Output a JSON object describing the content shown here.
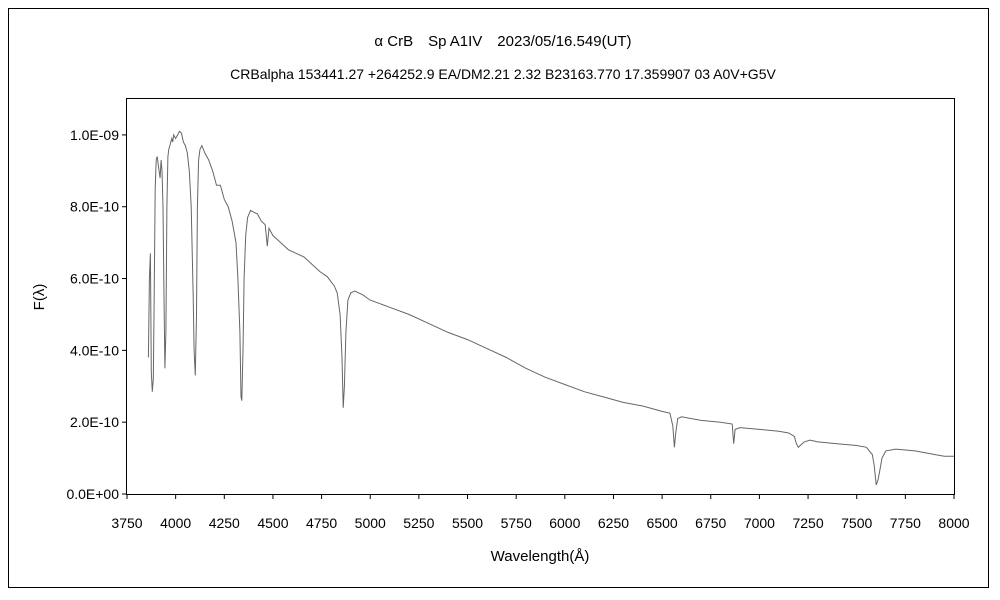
{
  "chart_data": {
    "type": "line",
    "title": "α CrB　Sp A1IV　2023/05/16.549(UT)",
    "subtitle": "CRBalpha 153441.27 +264252.9 EA/DM2.21 2.32 B23163.770 17.359907 03 A0V+G5V",
    "xlabel": "Wavelength(Å)",
    "ylabel": "F(λ)",
    "xlim": [
      3750,
      8000
    ],
    "ylim": [
      0,
      1.1e-09
    ],
    "xticks": [
      3750,
      4000,
      4250,
      4500,
      4750,
      5000,
      5250,
      5500,
      5750,
      6000,
      6250,
      6500,
      6750,
      7000,
      7250,
      7500,
      7750,
      8000
    ],
    "xtick_labels": [
      "3750",
      "4000",
      "4250",
      "4500",
      "4750",
      "5000",
      "5250",
      "5500",
      "5750",
      "6000",
      "6250",
      "6500",
      "6750",
      "7000",
      "7250",
      "7500",
      "7750",
      "8000"
    ],
    "yticks": [
      0,
      2e-10,
      4e-10,
      6e-10,
      8e-10,
      1e-09
    ],
    "ytick_labels": [
      "0.0E+00",
      "2.0E-10",
      "4.0E-10",
      "6.0E-10",
      "8.0E-10",
      "1.0E-09"
    ],
    "grid": false,
    "legend": "none",
    "line_color": "#666666",
    "series": [
      {
        "x": [
          3860,
          3865,
          3870,
          3875,
          3880,
          3885,
          3889,
          3895,
          3900,
          3905,
          3910,
          3915,
          3920,
          3925,
          3930,
          3935,
          3940,
          3945,
          3950,
          3955,
          3960,
          3965,
          3970,
          3975,
          3980,
          3985,
          3990,
          4000,
          4010,
          4020,
          4030,
          4040,
          4050,
          4060,
          4070,
          4080,
          4090,
          4095,
          4101,
          4107,
          4112,
          4118,
          4125,
          4135,
          4150,
          4170,
          4190,
          4210,
          4230,
          4250,
          4270,
          4290,
          4310,
          4320,
          4330,
          4336,
          4340,
          4346,
          4352,
          4360,
          4370,
          4385,
          4400,
          4420,
          4440,
          4460,
          4471,
          4480,
          4500,
          4540,
          4580,
          4620,
          4660,
          4700,
          4740,
          4780,
          4800,
          4815,
          4830,
          4845,
          4855,
          4861,
          4867,
          4875,
          4885,
          4900,
          4920,
          4960,
          5000,
          5050,
          5100,
          5200,
          5300,
          5400,
          5500,
          5600,
          5700,
          5800,
          5900,
          6000,
          6100,
          6200,
          6300,
          6400,
          6500,
          6540,
          6555,
          6563,
          6570,
          6580,
          6600,
          6700,
          6800,
          6860,
          6868,
          6875,
          6900,
          7000,
          7100,
          7150,
          7180,
          7190,
          7200,
          7230,
          7260,
          7300,
          7400,
          7500,
          7550,
          7580,
          7590,
          7600,
          7610,
          7620,
          7630,
          7650,
          7700,
          7800,
          7900,
          7950,
          8000
        ],
        "y": [
          3.8e-10,
          6e-10,
          6.7e-10,
          3.4e-10,
          2.85e-10,
          3.2e-10,
          5e-10,
          8.5e-10,
          9.3e-10,
          9.4e-10,
          9.2e-10,
          9e-10,
          8.8e-10,
          9.3e-10,
          9e-10,
          8e-10,
          5.5e-10,
          3.5e-10,
          4.5e-10,
          8e-10,
          9.4e-10,
          9.6e-10,
          9.7e-10,
          9.8e-10,
          9.9e-10,
          9.8e-10,
          1e-09,
          9.9e-10,
          1e-09,
          1.01e-09,
          1.005e-09,
          9.8e-10,
          9.7e-10,
          9.5e-10,
          9e-10,
          8e-10,
          5.5e-10,
          4e-10,
          3.3e-10,
          5e-10,
          8e-10,
          9.3e-10,
          9.6e-10,
          9.7e-10,
          9.5e-10,
          9.3e-10,
          9e-10,
          8.6e-10,
          8.6e-10,
          8.2e-10,
          8e-10,
          7.6e-10,
          7e-10,
          6e-10,
          4.5e-10,
          2.7e-10,
          2.6e-10,
          4e-10,
          6e-10,
          7.2e-10,
          7.7e-10,
          7.9e-10,
          7.85e-10,
          7.8e-10,
          7.6e-10,
          7.5e-10,
          6.9e-10,
          7.4e-10,
          7.2e-10,
          7e-10,
          6.8e-10,
          6.7e-10,
          6.6e-10,
          6.4e-10,
          6.2e-10,
          6.05e-10,
          5.9e-10,
          5.8e-10,
          5.6e-10,
          5e-10,
          3.8e-10,
          2.4e-10,
          3e-10,
          4.5e-10,
          5.4e-10,
          5.6e-10,
          5.65e-10,
          5.55e-10,
          5.4e-10,
          5.3e-10,
          5.2e-10,
          5e-10,
          4.75e-10,
          4.5e-10,
          4.3e-10,
          4.05e-10,
          3.8e-10,
          3.5e-10,
          3.25e-10,
          3.05e-10,
          2.85e-10,
          2.7e-10,
          2.55e-10,
          2.45e-10,
          2.3e-10,
          2.25e-10,
          1.9e-10,
          1.3e-10,
          1.7e-10,
          2.1e-10,
          2.15e-10,
          2.05e-10,
          2e-10,
          1.95e-10,
          1.4e-10,
          1.8e-10,
          1.85e-10,
          1.8e-10,
          1.75e-10,
          1.7e-10,
          1.6e-10,
          1.4e-10,
          1.3e-10,
          1.45e-10,
          1.5e-10,
          1.45e-10,
          1.4e-10,
          1.35e-10,
          1.3e-10,
          1.1e-10,
          8e-11,
          2.5e-11,
          4e-11,
          7e-11,
          1e-10,
          1.2e-10,
          1.25e-10,
          1.2e-10,
          1.1e-10,
          1.05e-10,
          1.05e-10
        ]
      }
    ]
  }
}
